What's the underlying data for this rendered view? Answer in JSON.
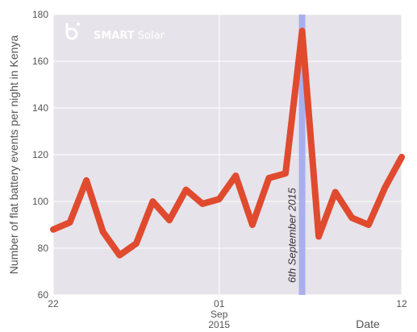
{
  "chart_data": {
    "type": "line",
    "ylabel": "Number  of flat battery events per night in Kenya",
    "xlabel": "Date",
    "ylim": [
      60,
      180
    ],
    "yticks": [
      60,
      80,
      100,
      120,
      140,
      160,
      180
    ],
    "xlim": [
      "2015-08-22",
      "2015-09-12"
    ],
    "xticks": [
      {
        "date": "2015-08-22",
        "label": "22",
        "sub1": "",
        "sub2": ""
      },
      {
        "date": "2015-09-01",
        "label": "01",
        "sub1": "Sep",
        "sub2": "2015"
      },
      {
        "date": "2015-09-12",
        "label": "12",
        "sub1": "",
        "sub2": ""
      }
    ],
    "grid": true,
    "series": [
      {
        "color": "#e04a2e",
        "x": [
          "2015-08-22",
          "2015-08-23",
          "2015-08-24",
          "2015-08-25",
          "2015-08-26",
          "2015-08-27",
          "2015-08-28",
          "2015-08-29",
          "2015-08-30",
          "2015-08-31",
          "2015-09-01",
          "2015-09-02",
          "2015-09-03",
          "2015-09-04",
          "2015-09-05",
          "2015-09-06",
          "2015-09-07",
          "2015-09-08",
          "2015-09-09",
          "2015-09-10",
          "2015-09-11",
          "2015-09-12"
        ],
        "y": [
          88,
          91,
          109,
          87,
          77,
          82,
          100,
          92,
          105,
          99,
          101,
          111,
          90,
          110,
          112,
          173,
          85,
          104,
          93,
          90,
          106,
          119
        ]
      }
    ],
    "annotations": [
      {
        "date": "2015-09-06",
        "text": "6th September 2015",
        "color": "#9fa6ee"
      }
    ]
  },
  "brand": {
    "name_bold": "SMART",
    "name_light": "Solar",
    "logo_icon": "b-logo-icon"
  },
  "colors": {
    "plot_bg": "#e6e3ea",
    "grid": "#ffffff",
    "line": "#e04a2e",
    "highlight": "#9fa6ee"
  }
}
